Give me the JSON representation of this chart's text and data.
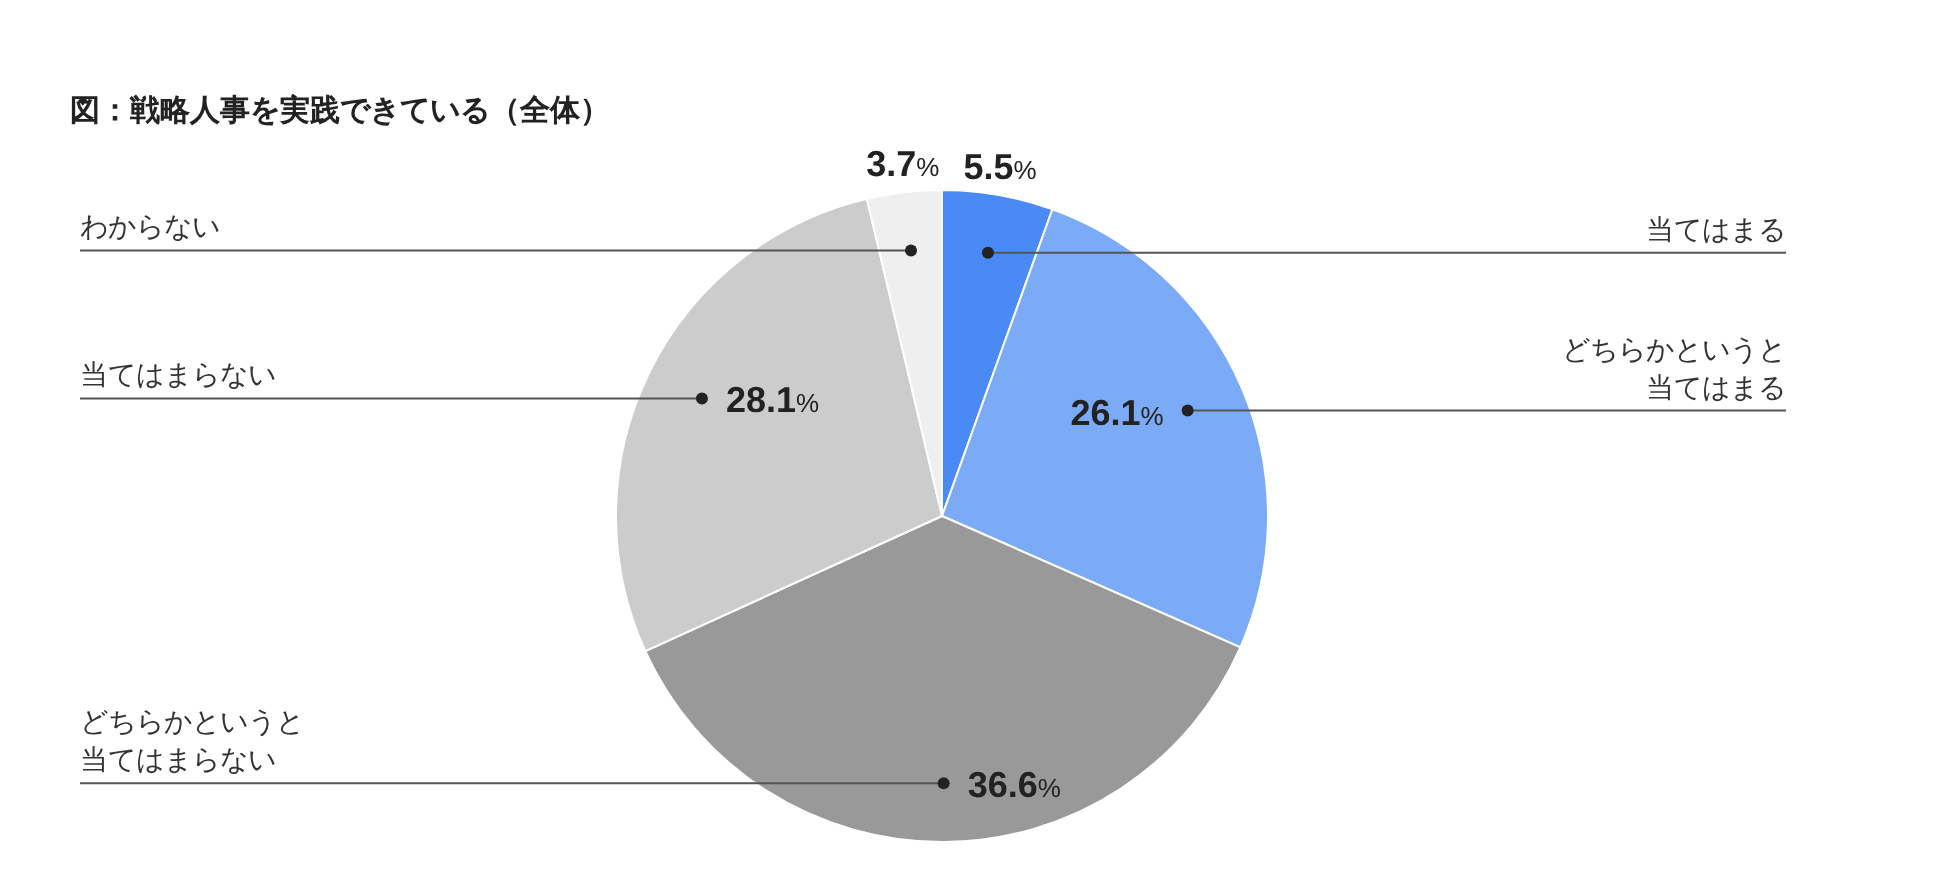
{
  "chart_data": {
    "type": "pie",
    "title": "図：戦略人事を実践できている（全体）",
    "categories": [
      "当てはまる",
      "どちらかというと当てはまる",
      "どちらかというと当てはまらない",
      "当てはまらない",
      "わからない"
    ],
    "values": [
      5.5,
      26.1,
      36.6,
      28.1,
      3.7
    ],
    "colors": [
      "#4a8af4",
      "#7baaf7",
      "#999999",
      "#cccccc",
      "#efefef"
    ],
    "value_labels": [
      "5.5%",
      "26.1%",
      "36.6%",
      "28.1%",
      "3.7%"
    ]
  }
}
